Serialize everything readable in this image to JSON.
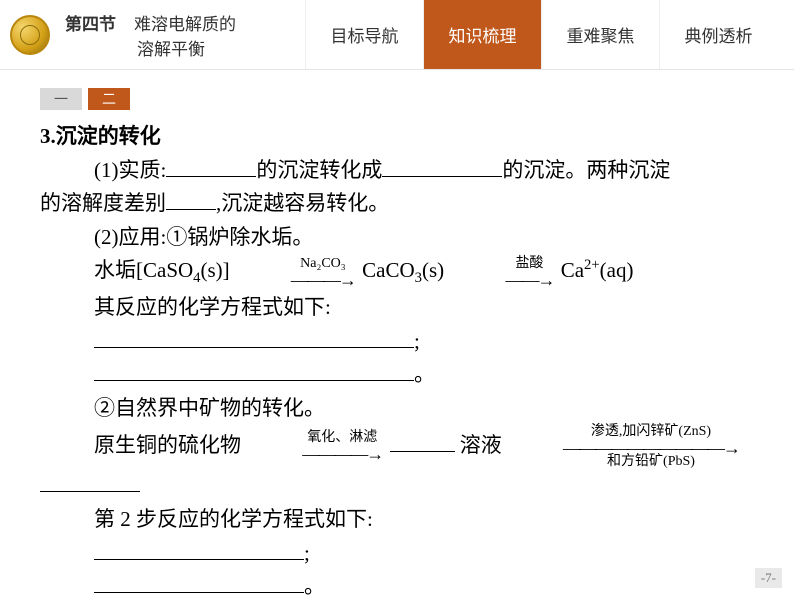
{
  "header": {
    "section_label": "第四节",
    "title_line1": "难溶电解质的",
    "title_line2": "溶解平衡",
    "nav": [
      {
        "label": "目标导航",
        "active": false
      },
      {
        "label": "知识梳理",
        "active": true
      },
      {
        "label": "重难聚焦",
        "active": false
      },
      {
        "label": "典例透析",
        "active": false
      }
    ]
  },
  "subtabs": [
    {
      "label": "一",
      "active": false
    },
    {
      "label": "二",
      "active": true
    }
  ],
  "content": {
    "heading_num": "3",
    "heading_text": ".沉淀的转化",
    "p1_a": "(1)实质:",
    "p1_b": "的沉淀转化成",
    "p1_c": "的沉淀。两种沉淀",
    "p2_a": "的溶解度差别",
    "p2_b": ",沉淀越容易转化。",
    "p3": "(2)应用:①锅炉除水垢。",
    "eq1_lhs": "水垢[CaSO",
    "eq1_lhs_sub": "4",
    "eq1_lhs_tail": "(s)]",
    "eq1_arrow1_top": "Na₂CO₃",
    "eq1_mid": "CaCO",
    "eq1_mid_sub": "3",
    "eq1_mid_tail": "(s)",
    "eq1_arrow2_top": "盐酸",
    "eq1_rhs": "Ca",
    "eq1_rhs_sup": "2+",
    "eq1_rhs_tail": "(aq)",
    "p4": "其反应的化学方程式如下:",
    "semi": ";",
    "period": "。",
    "p5": "②自然界中矿物的转化。",
    "eq2_lhs": "原生铜的硫化物",
    "eq2_arrow1_top": "氧化、淋滤",
    "eq2_mid": "溶液",
    "eq2_arrow2_top": "渗透,加闪锌矿(ZnS)",
    "eq2_arrow2_bot": "和方铅矿(PbS)",
    "p6": "第 2 步反应的化学方程式如下:"
  },
  "page_number": "-7-",
  "colors": {
    "accent": "#c0571b",
    "subtab_inactive_bg": "#d9d9d9",
    "text": "#000000",
    "header_text": "#333333",
    "border": "#e5e5e5",
    "pagenum_bg": "#e9e9e9"
  }
}
